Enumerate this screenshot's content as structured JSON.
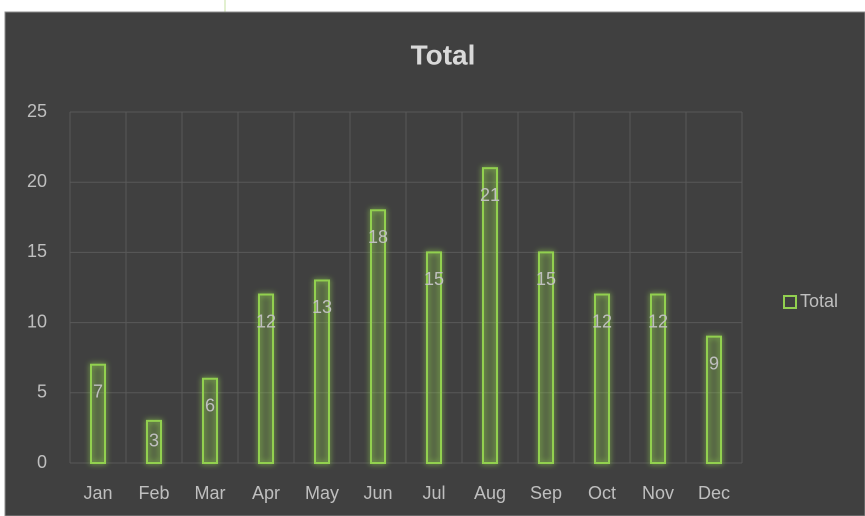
{
  "chart_data": {
    "type": "bar",
    "title": "Total",
    "categories": [
      "Jan",
      "Feb",
      "Mar",
      "Apr",
      "May",
      "Jun",
      "Jul",
      "Aug",
      "Sep",
      "Oct",
      "Nov",
      "Dec"
    ],
    "series": [
      {
        "name": "Total",
        "color": "#92d050",
        "values": [
          7,
          3,
          6,
          12,
          13,
          18,
          15,
          21,
          15,
          12,
          12,
          9
        ]
      }
    ],
    "ylim": [
      0,
      25
    ],
    "yticks": [
      0,
      5,
      10,
      15,
      20,
      25
    ],
    "grid": true,
    "legend": "right"
  }
}
